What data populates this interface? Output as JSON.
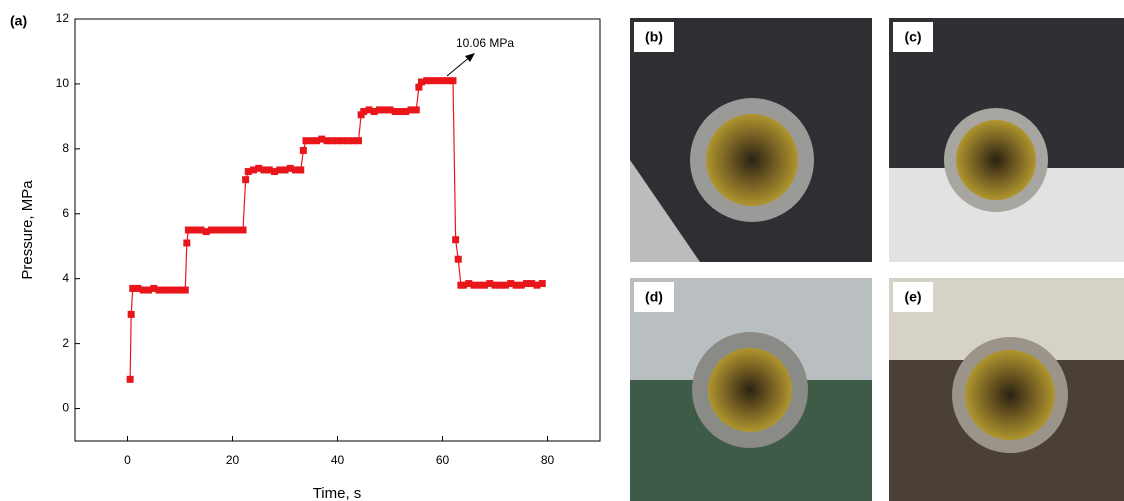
{
  "chart_data": {
    "type": "line",
    "panel_label": "(a)",
    "xlabel": "Time, s",
    "ylabel": "Pressure, MPa",
    "annotation": "10.06 MPa",
    "color": "#e8161b",
    "xlim": [
      -10,
      90
    ],
    "xticks": [
      0,
      20,
      40,
      60,
      80
    ],
    "ylim": [
      -1,
      12
    ],
    "yticks": [
      0,
      2,
      4,
      6,
      8,
      10,
      12
    ],
    "x": [
      0.5,
      0.7,
      1,
      2,
      3,
      4,
      5,
      6,
      7,
      8,
      9,
      10,
      11,
      11.3,
      11.6,
      12,
      13,
      14,
      15,
      16,
      17,
      18,
      19,
      20,
      21,
      22,
      22.5,
      23,
      24,
      25,
      26,
      27,
      28,
      29,
      30,
      31,
      32,
      33,
      33.5,
      34,
      35,
      36,
      37,
      38,
      39,
      40,
      41,
      42,
      43,
      44,
      44.5,
      45,
      46,
      47,
      48,
      49,
      50,
      51,
      52,
      53,
      54,
      55,
      55.5,
      56,
      57,
      58,
      59,
      60,
      61,
      62,
      62.5,
      63,
      63.5,
      64,
      65,
      66,
      67,
      68,
      69,
      70,
      71,
      72,
      73,
      74,
      75,
      76,
      77,
      78,
      79
    ],
    "values": [
      0.9,
      2.9,
      3.7,
      3.7,
      3.65,
      3.65,
      3.7,
      3.65,
      3.65,
      3.65,
      3.65,
      3.65,
      3.65,
      5.1,
      5.5,
      5.5,
      5.5,
      5.5,
      5.45,
      5.5,
      5.5,
      5.5,
      5.5,
      5.5,
      5.5,
      5.5,
      7.05,
      7.3,
      7.35,
      7.4,
      7.35,
      7.35,
      7.3,
      7.35,
      7.35,
      7.4,
      7.35,
      7.35,
      7.95,
      8.25,
      8.25,
      8.25,
      8.3,
      8.25,
      8.25,
      8.25,
      8.25,
      8.25,
      8.25,
      8.25,
      9.05,
      9.15,
      9.2,
      9.15,
      9.2,
      9.2,
      9.2,
      9.15,
      9.15,
      9.15,
      9.2,
      9.2,
      9.9,
      10.06,
      10.1,
      10.1,
      10.1,
      10.1,
      10.1,
      10.1,
      5.2,
      4.6,
      3.8,
      3.8,
      3.85,
      3.8,
      3.8,
      3.8,
      3.85,
      3.8,
      3.8,
      3.8,
      3.85,
      3.8,
      3.8,
      3.85,
      3.85,
      3.8,
      3.85
    ]
  },
  "photos": [
    {
      "label": "(b)"
    },
    {
      "label": "(c)"
    },
    {
      "label": "(d)"
    },
    {
      "label": "(e)"
    }
  ]
}
